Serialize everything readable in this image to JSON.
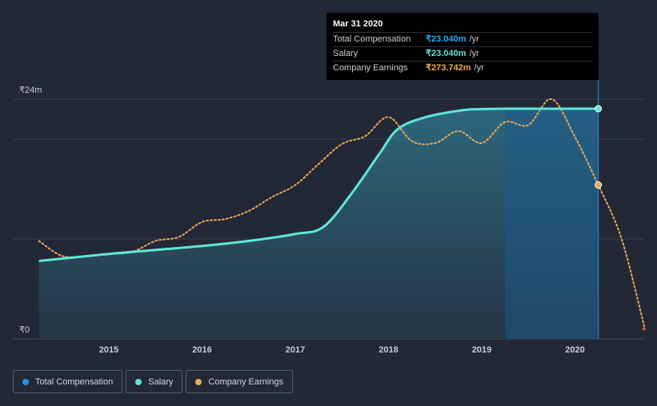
{
  "tooltip": {
    "date": "Mar 31 2020",
    "rows": [
      {
        "label": "Total Compensation",
        "value": "₹23.040m",
        "unit": "/yr",
        "color": "#2aa8f2"
      },
      {
        "label": "Salary",
        "value": "₹23.040m",
        "unit": "/yr",
        "color": "#5ee6d6"
      },
      {
        "label": "Company Earnings",
        "value": "₹273.742m",
        "unit": "/yr",
        "color": "#f0a94b"
      }
    ]
  },
  "legend": [
    {
      "label": "Total Compensation",
      "color": "#2b8fe0"
    },
    {
      "label": "Salary",
      "color": "#5ee6d6"
    },
    {
      "label": "Company Earnings",
      "color": "#e8a95c"
    }
  ],
  "chart_data": {
    "type": "line",
    "y_tick_labels": [
      {
        "value": 0,
        "label": "₹0"
      },
      {
        "value": 24,
        "label": "₹24m"
      }
    ],
    "ylim": [
      0,
      24
    ],
    "xlim": [
      2014.25,
      2020.75
    ],
    "x_ticks": [
      "2015",
      "2016",
      "2017",
      "2018",
      "2019",
      "2020"
    ],
    "grid": true,
    "series": [
      {
        "name": "Total Compensation",
        "x": [
          2014.25,
          2015.0,
          2015.5,
          2016.0,
          2016.5,
          2017.0,
          2017.3,
          2017.6,
          2017.9,
          2018.1,
          2018.4,
          2018.8,
          2019.0,
          2019.25,
          2019.5,
          2019.75,
          2020.0,
          2020.25
        ],
        "values": [
          7.8,
          8.5,
          8.9,
          9.3,
          9.8,
          10.5,
          11.2,
          14.5,
          18.5,
          21.0,
          22.2,
          22.9,
          23.0,
          23.04,
          23.04,
          23.04,
          23.04,
          23.04
        ]
      },
      {
        "name": "Salary",
        "x": [
          2014.25,
          2015.0,
          2015.5,
          2016.0,
          2016.5,
          2017.0,
          2017.3,
          2017.6,
          2017.9,
          2018.1,
          2018.4,
          2018.8,
          2019.0,
          2019.25,
          2019.5,
          2019.75,
          2020.0,
          2020.25
        ],
        "values": [
          7.8,
          8.5,
          8.9,
          9.3,
          9.8,
          10.5,
          11.2,
          14.5,
          18.5,
          21.0,
          22.2,
          22.9,
          23.0,
          23.04,
          23.04,
          23.04,
          23.04,
          23.04
        ]
      },
      {
        "name": "Company Earnings",
        "axis": "hidden",
        "x": [
          2014.25,
          2014.5,
          2014.75,
          2015.0,
          2015.25,
          2015.5,
          2015.75,
          2016.0,
          2016.25,
          2016.5,
          2016.75,
          2017.0,
          2017.25,
          2017.5,
          2017.75,
          2018.0,
          2018.25,
          2018.5,
          2018.75,
          2019.0,
          2019.25,
          2019.5,
          2019.75,
          2020.0,
          2020.25,
          2020.5,
          2020.75
        ],
        "values": [
          9.8,
          8.3,
          8.3,
          8.5,
          8.7,
          9.8,
          10.2,
          11.7,
          12.0,
          12.8,
          14.2,
          15.4,
          17.5,
          19.5,
          20.3,
          22.2,
          19.8,
          19.6,
          20.8,
          19.6,
          21.7,
          21.4,
          24.0,
          20.2,
          15.4,
          10.0,
          1.0
        ]
      }
    ],
    "highlight_x": 2020.25
  }
}
